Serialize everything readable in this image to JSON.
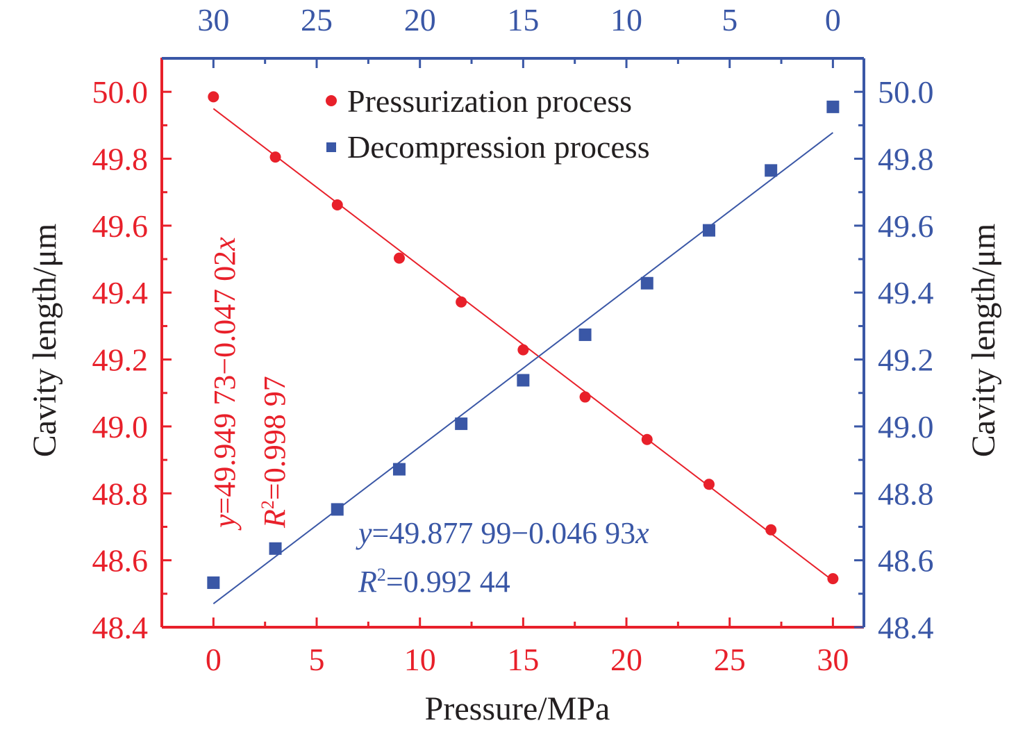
{
  "chart_data": {
    "type": "scatter",
    "xlabel": "Pressure/MPa",
    "ylabel_left": "Cavity length/μm",
    "ylabel_right": "Cavity length/μm",
    "xlim": [
      -2.5,
      31.5
    ],
    "ylim": [
      48.4,
      50.1
    ],
    "xticks_bottom": [
      0,
      5,
      10,
      15,
      20,
      25,
      30
    ],
    "xticks_top": [
      30,
      25,
      20,
      15,
      10,
      5,
      0
    ],
    "yticks": [
      "48.4",
      "48.6",
      "48.8",
      "49.0",
      "49.2",
      "49.4",
      "49.6",
      "49.8",
      "50.0"
    ],
    "legend_position": "top-center",
    "series": [
      {
        "name": "Pressurization process",
        "color": "#e8202a",
        "marker": "circle",
        "axis": "bottom-left",
        "x": [
          0,
          3,
          6,
          9,
          12,
          15,
          18,
          21,
          24,
          27,
          30
        ],
        "y": [
          49.985,
          49.805,
          49.662,
          49.503,
          49.372,
          49.229,
          49.088,
          48.961,
          48.827,
          48.691,
          48.545
        ]
      },
      {
        "name": "Decompression process",
        "color": "#3a57a6",
        "marker": "square",
        "axis": "top-right",
        "x": [
          30,
          27,
          24,
          21,
          18,
          15,
          12,
          9,
          6,
          3,
          0
        ],
        "y": [
          48.533,
          48.635,
          48.752,
          48.872,
          49.008,
          49.138,
          49.274,
          49.428,
          49.586,
          49.765,
          49.955
        ]
      }
    ],
    "fits": [
      {
        "series": "Pressurization process",
        "color": "#e8202a",
        "intercept": 49.94973,
        "slope": -0.04702,
        "eq_prefix": "y",
        "eq_body": "=49.949 73−0.047 02",
        "eq_var": "x",
        "r2_prefix": "R",
        "r2_exp": "2",
        "r2_body": "=0.998 97"
      },
      {
        "series": "Decompression process",
        "color": "#3a57a6",
        "intercept": 49.87799,
        "slope": -0.04693,
        "eq_prefix": "y",
        "eq_body": "=49.877 99−0.046 93",
        "eq_var": "x",
        "r2_prefix": "R",
        "r2_exp": "2",
        "r2_body": "=0.992 44"
      }
    ]
  }
}
